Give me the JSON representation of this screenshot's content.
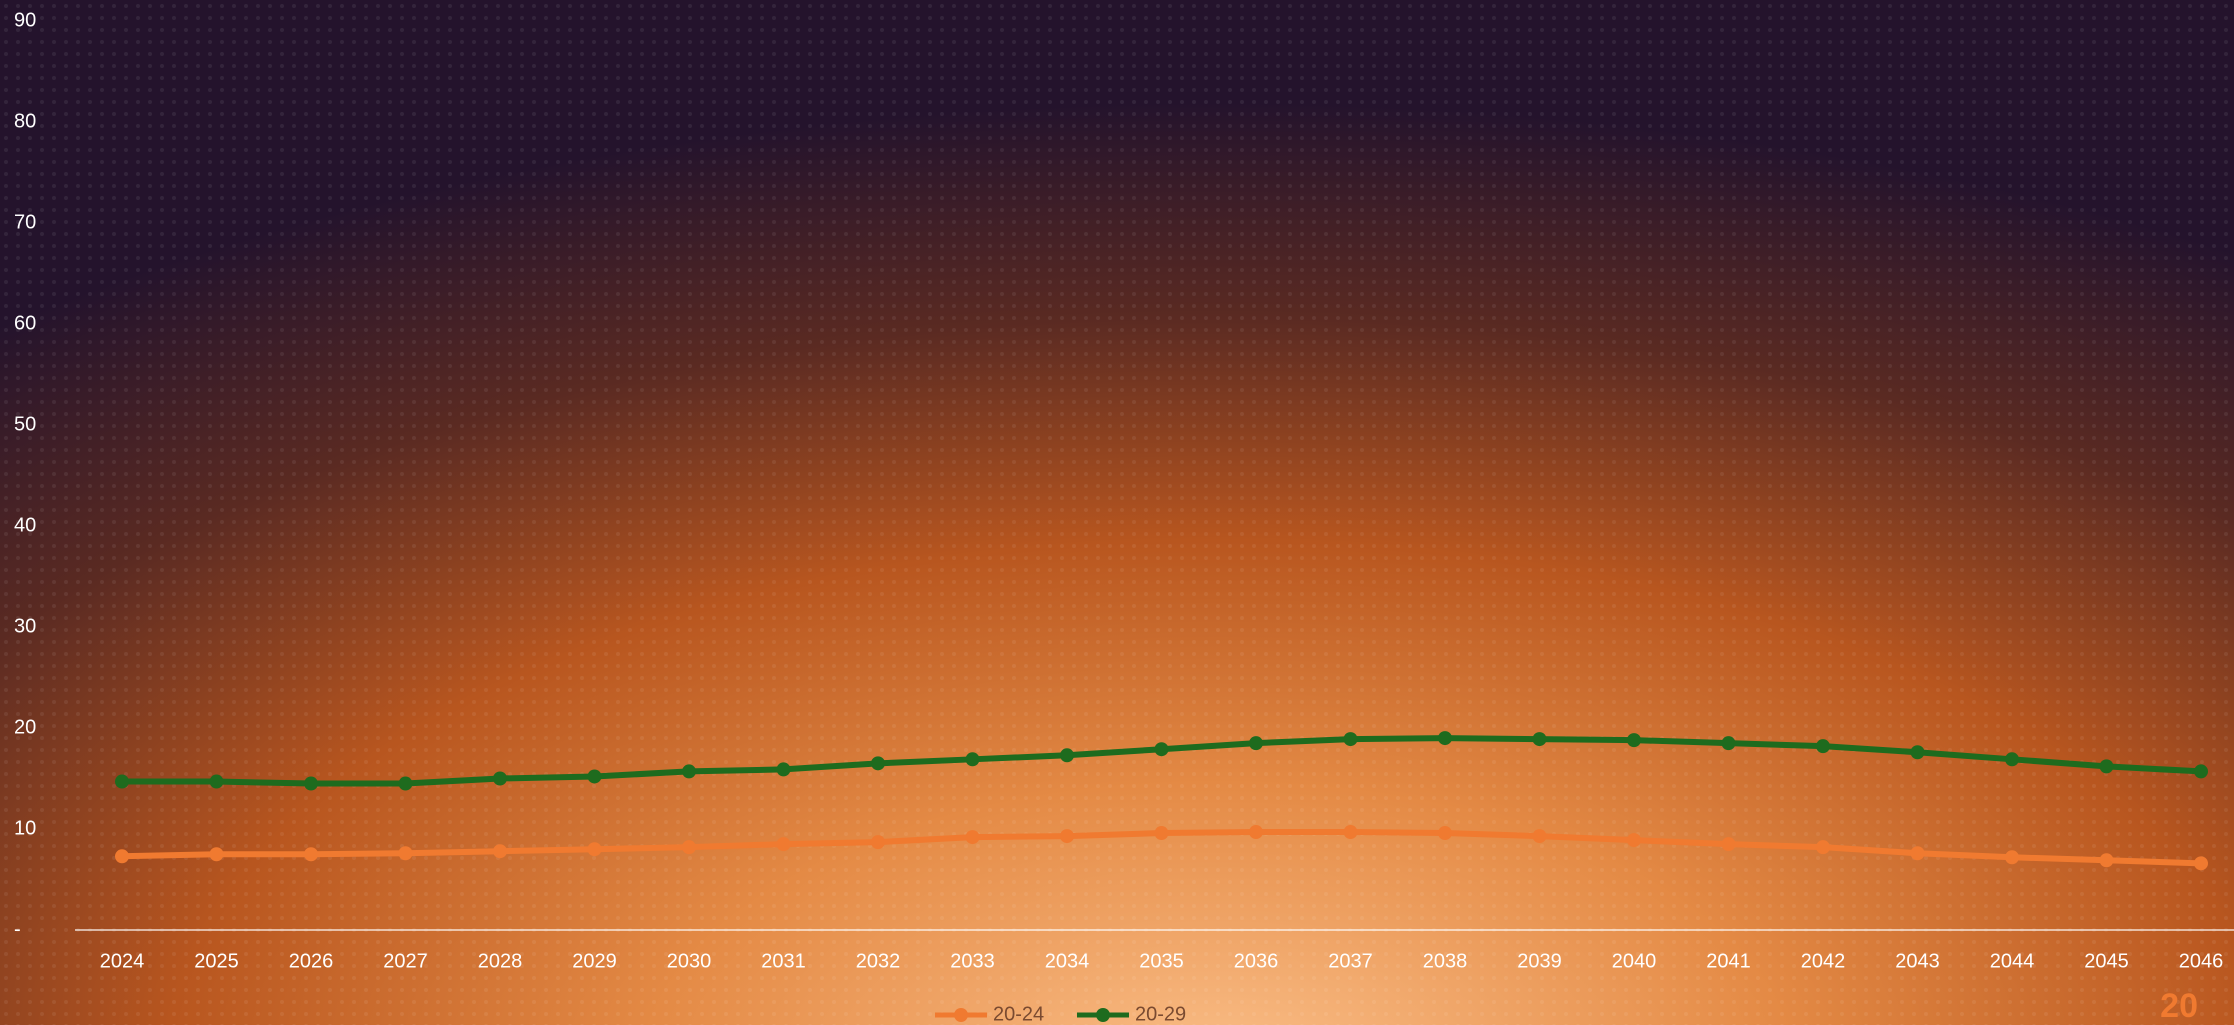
{
  "chart_data": {
    "type": "line",
    "categories": [
      "2024",
      "2025",
      "2026",
      "2027",
      "2028",
      "2029",
      "2030",
      "2031",
      "2032",
      "2033",
      "2034",
      "2035",
      "2036",
      "2037",
      "2038",
      "2039",
      "2040",
      "2041",
      "2042",
      "2043",
      "2044",
      "2045",
      "2046"
    ],
    "series": [
      {
        "name": "20-24",
        "color": "#f07a30",
        "values": [
          7.3,
          7.5,
          7.5,
          7.6,
          7.8,
          8.0,
          8.2,
          8.5,
          8.7,
          9.2,
          9.3,
          9.6,
          9.7,
          9.7,
          9.6,
          9.3,
          8.9,
          8.5,
          8.2,
          7.6,
          7.2,
          6.9,
          6.6
        ]
      },
      {
        "name": "20-29",
        "color": "#1e6b1e",
        "values": [
          14.7,
          14.7,
          14.5,
          14.5,
          15.0,
          15.2,
          15.7,
          15.9,
          16.5,
          16.9,
          17.3,
          17.9,
          18.5,
          18.9,
          19.0,
          18.9,
          18.8,
          18.5,
          18.2,
          17.6,
          16.9,
          16.2,
          15.7
        ]
      }
    ],
    "ylim": [
      0,
      90
    ],
    "yticks": [
      {
        "value": 0,
        "label": "-"
      },
      10,
      20,
      30,
      40,
      50,
      60,
      70,
      80,
      90
    ],
    "corner_text": "20"
  }
}
